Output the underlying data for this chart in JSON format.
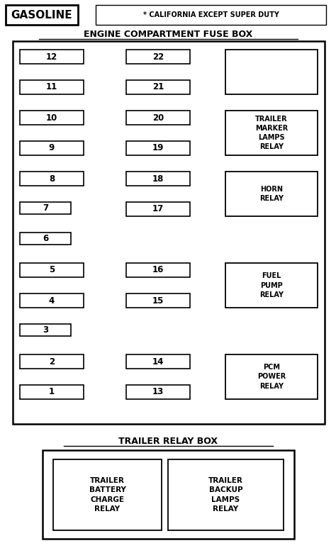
{
  "title_gasoline": "GASOLINE",
  "title_california": "* CALIFORNIA EXCEPT SUPER DUTY",
  "title_engine_box": "ENGINE COMPARTMENT FUSE BOX",
  "title_trailer_box": "TRAILER RELAY BOX",
  "bg_color": "#ffffff",
  "left_fuses": [
    "12",
    "11",
    "10",
    "9",
    "8",
    "7",
    "6",
    "5",
    "4",
    "3",
    "2",
    "1"
  ],
  "right_fuses_rows": [
    0,
    1,
    2,
    3,
    4,
    5,
    7,
    8,
    10,
    11
  ],
  "right_fuses_nums": [
    "22",
    "21",
    "20",
    "19",
    "18",
    "17",
    "16",
    "15",
    "14",
    "13"
  ],
  "small_fuses": [
    "7",
    "6",
    "3"
  ],
  "relay_labels": [
    "",
    "TRAILER\nMARKER\nLAMPS\nRELAY",
    "HORN\nRELAY",
    "FUEL\nPUMP\nRELAY",
    "PCM\nPOWER\nRELAY"
  ],
  "relay_row_starts": [
    0,
    2,
    4,
    7,
    10
  ],
  "relay_row_ends": [
    1,
    3,
    5,
    8,
    11
  ],
  "trailer_inner_labels": [
    "TRAILER\nBATTERY\nCHARGE\nRELAY",
    "TRAILER\nBACKUP\nLAMPS\nRELAY"
  ]
}
